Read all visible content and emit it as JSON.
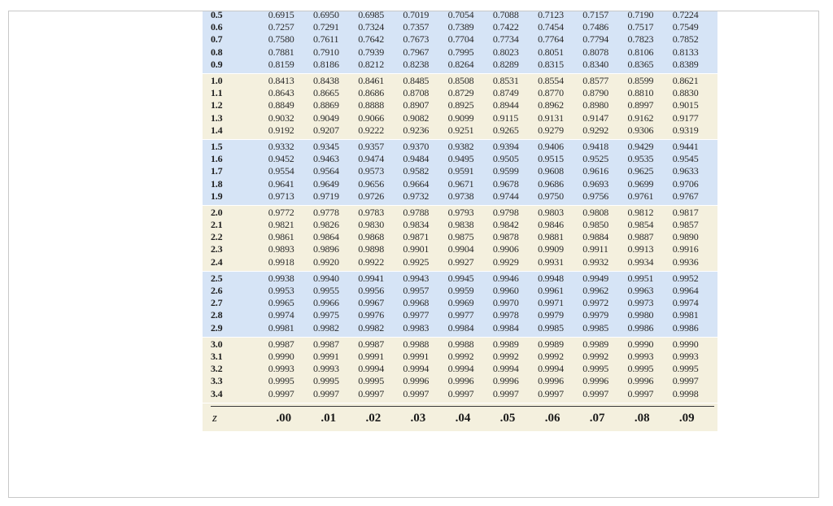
{
  "table": {
    "z_label": "z",
    "columns": [
      ".00",
      ".01",
      ".02",
      ".03",
      ".04",
      ".05",
      ".06",
      ".07",
      ".08",
      ".09"
    ],
    "groups": [
      {
        "shade": "blue",
        "rows": [
          {
            "z": "0.5",
            "values": [
              "0.6915",
              "0.6950",
              "0.6985",
              "0.7019",
              "0.7054",
              "0.7088",
              "0.7123",
              "0.7157",
              "0.7190",
              "0.7224"
            ]
          },
          {
            "z": "0.6",
            "values": [
              "0.7257",
              "0.7291",
              "0.7324",
              "0.7357",
              "0.7389",
              "0.7422",
              "0.7454",
              "0.7486",
              "0.7517",
              "0.7549"
            ]
          },
          {
            "z": "0.7",
            "values": [
              "0.7580",
              "0.7611",
              "0.7642",
              "0.7673",
              "0.7704",
              "0.7734",
              "0.7764",
              "0.7794",
              "0.7823",
              "0.7852"
            ]
          },
          {
            "z": "0.8",
            "values": [
              "0.7881",
              "0.7910",
              "0.7939",
              "0.7967",
              "0.7995",
              "0.8023",
              "0.8051",
              "0.8078",
              "0.8106",
              "0.8133"
            ]
          },
          {
            "z": "0.9",
            "values": [
              "0.8159",
              "0.8186",
              "0.8212",
              "0.8238",
              "0.8264",
              "0.8289",
              "0.8315",
              "0.8340",
              "0.8365",
              "0.8389"
            ]
          }
        ]
      },
      {
        "shade": "cream",
        "rows": [
          {
            "z": "1.0",
            "values": [
              "0.8413",
              "0.8438",
              "0.8461",
              "0.8485",
              "0.8508",
              "0.8531",
              "0.8554",
              "0.8577",
              "0.8599",
              "0.8621"
            ]
          },
          {
            "z": "1.1",
            "values": [
              "0.8643",
              "0.8665",
              "0.8686",
              "0.8708",
              "0.8729",
              "0.8749",
              "0.8770",
              "0.8790",
              "0.8810",
              "0.8830"
            ]
          },
          {
            "z": "1.2",
            "values": [
              "0.8849",
              "0.8869",
              "0.8888",
              "0.8907",
              "0.8925",
              "0.8944",
              "0.8962",
              "0.8980",
              "0.8997",
              "0.9015"
            ]
          },
          {
            "z": "1.3",
            "values": [
              "0.9032",
              "0.9049",
              "0.9066",
              "0.9082",
              "0.9099",
              "0.9115",
              "0.9131",
              "0.9147",
              "0.9162",
              "0.9177"
            ]
          },
          {
            "z": "1.4",
            "values": [
              "0.9192",
              "0.9207",
              "0.9222",
              "0.9236",
              "0.9251",
              "0.9265",
              "0.9279",
              "0.9292",
              "0.9306",
              "0.9319"
            ]
          }
        ]
      },
      {
        "shade": "blue",
        "rows": [
          {
            "z": "1.5",
            "values": [
              "0.9332",
              "0.9345",
              "0.9357",
              "0.9370",
              "0.9382",
              "0.9394",
              "0.9406",
              "0.9418",
              "0.9429",
              "0.9441"
            ]
          },
          {
            "z": "1.6",
            "values": [
              "0.9452",
              "0.9463",
              "0.9474",
              "0.9484",
              "0.9495",
              "0.9505",
              "0.9515",
              "0.9525",
              "0.9535",
              "0.9545"
            ]
          },
          {
            "z": "1.7",
            "values": [
              "0.9554",
              "0.9564",
              "0.9573",
              "0.9582",
              "0.9591",
              "0.9599",
              "0.9608",
              "0.9616",
              "0.9625",
              "0.9633"
            ]
          },
          {
            "z": "1.8",
            "values": [
              "0.9641",
              "0.9649",
              "0.9656",
              "0.9664",
              "0.9671",
              "0.9678",
              "0.9686",
              "0.9693",
              "0.9699",
              "0.9706"
            ]
          },
          {
            "z": "1.9",
            "values": [
              "0.9713",
              "0.9719",
              "0.9726",
              "0.9732",
              "0.9738",
              "0.9744",
              "0.9750",
              "0.9756",
              "0.9761",
              "0.9767"
            ]
          }
        ]
      },
      {
        "shade": "cream",
        "rows": [
          {
            "z": "2.0",
            "values": [
              "0.9772",
              "0.9778",
              "0.9783",
              "0.9788",
              "0.9793",
              "0.9798",
              "0.9803",
              "0.9808",
              "0.9812",
              "0.9817"
            ]
          },
          {
            "z": "2.1",
            "values": [
              "0.9821",
              "0.9826",
              "0.9830",
              "0.9834",
              "0.9838",
              "0.9842",
              "0.9846",
              "0.9850",
              "0.9854",
              "0.9857"
            ]
          },
          {
            "z": "2.2",
            "values": [
              "0.9861",
              "0.9864",
              "0.9868",
              "0.9871",
              "0.9875",
              "0.9878",
              "0.9881",
              "0.9884",
              "0.9887",
              "0.9890"
            ]
          },
          {
            "z": "2.3",
            "values": [
              "0.9893",
              "0.9896",
              "0.9898",
              "0.9901",
              "0.9904",
              "0.9906",
              "0.9909",
              "0.9911",
              "0.9913",
              "0.9916"
            ]
          },
          {
            "z": "2.4",
            "values": [
              "0.9918",
              "0.9920",
              "0.9922",
              "0.9925",
              "0.9927",
              "0.9929",
              "0.9931",
              "0.9932",
              "0.9934",
              "0.9936"
            ]
          }
        ]
      },
      {
        "shade": "blue",
        "rows": [
          {
            "z": "2.5",
            "values": [
              "0.9938",
              "0.9940",
              "0.9941",
              "0.9943",
              "0.9945",
              "0.9946",
              "0.9948",
              "0.9949",
              "0.9951",
              "0.9952"
            ]
          },
          {
            "z": "2.6",
            "values": [
              "0.9953",
              "0.9955",
              "0.9956",
              "0.9957",
              "0.9959",
              "0.9960",
              "0.9961",
              "0.9962",
              "0.9963",
              "0.9964"
            ]
          },
          {
            "z": "2.7",
            "values": [
              "0.9965",
              "0.9966",
              "0.9967",
              "0.9968",
              "0.9969",
              "0.9970",
              "0.9971",
              "0.9972",
              "0.9973",
              "0.9974"
            ]
          },
          {
            "z": "2.8",
            "values": [
              "0.9974",
              "0.9975",
              "0.9976",
              "0.9977",
              "0.9977",
              "0.9978",
              "0.9979",
              "0.9979",
              "0.9980",
              "0.9981"
            ]
          },
          {
            "z": "2.9",
            "values": [
              "0.9981",
              "0.9982",
              "0.9982",
              "0.9983",
              "0.9984",
              "0.9984",
              "0.9985",
              "0.9985",
              "0.9986",
              "0.9986"
            ]
          }
        ]
      },
      {
        "shade": "cream",
        "rows": [
          {
            "z": "3.0",
            "values": [
              "0.9987",
              "0.9987",
              "0.9987",
              "0.9988",
              "0.9988",
              "0.9989",
              "0.9989",
              "0.9989",
              "0.9990",
              "0.9990"
            ]
          },
          {
            "z": "3.1",
            "values": [
              "0.9990",
              "0.9991",
              "0.9991",
              "0.9991",
              "0.9992",
              "0.9992",
              "0.9992",
              "0.9992",
              "0.9993",
              "0.9993"
            ]
          },
          {
            "z": "3.2",
            "values": [
              "0.9993",
              "0.9993",
              "0.9994",
              "0.9994",
              "0.9994",
              "0.9994",
              "0.9994",
              "0.9995",
              "0.9995",
              "0.9995"
            ]
          },
          {
            "z": "3.3",
            "values": [
              "0.9995",
              "0.9995",
              "0.9995",
              "0.9996",
              "0.9996",
              "0.9996",
              "0.9996",
              "0.9996",
              "0.9996",
              "0.9997"
            ]
          },
          {
            "z": "3.4",
            "values": [
              "0.9997",
              "0.9997",
              "0.9997",
              "0.9997",
              "0.9997",
              "0.9997",
              "0.9997",
              "0.9997",
              "0.9997",
              "0.9998"
            ]
          }
        ]
      }
    ]
  },
  "colors": {
    "blue_band": "#d6e4f6",
    "cream_band": "#f4f0de",
    "frame_border": "#c8c8c8"
  }
}
